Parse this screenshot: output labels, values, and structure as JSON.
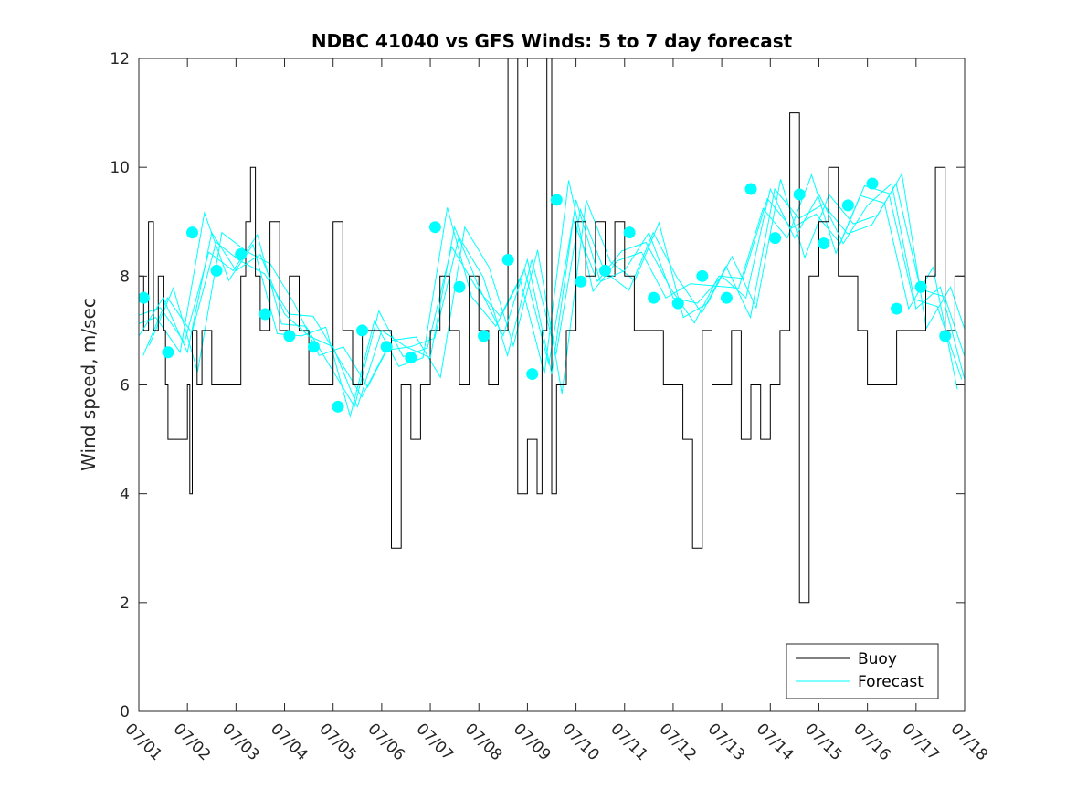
{
  "chart_data": {
    "type": "line",
    "title": "NDBC 41040 vs GFS Winds: 5 to 7 day forecast",
    "xlabel": "",
    "ylabel": "Wind speed, m/sec",
    "ylim": [
      0,
      12
    ],
    "xlim": [
      0,
      17
    ],
    "yticks": [
      0,
      2,
      4,
      6,
      8,
      10,
      12
    ],
    "xtick_labels": [
      "07/01",
      "07/02",
      "07/03",
      "07/04",
      "07/05",
      "07/06",
      "07/07",
      "07/08",
      "07/09",
      "07/10",
      "07/11",
      "07/12",
      "07/13",
      "07/14",
      "07/15",
      "07/16",
      "07/17",
      "07/18"
    ],
    "legend": {
      "placement": "bottom-right",
      "entries": [
        "Buoy",
        "Forecast"
      ]
    },
    "colors": {
      "buoy": "#000000",
      "forecast": "#00ffff"
    },
    "series": [
      {
        "name": "Buoy",
        "x": [
          0,
          0.1,
          0.2,
          0.3,
          0.4,
          0.5,
          0.55,
          0.6,
          0.75,
          0.9,
          1.0,
          1.05,
          1.1,
          1.2,
          1.3,
          1.5,
          1.7,
          1.9,
          2.0,
          2.1,
          2.2,
          2.3,
          2.4,
          2.5,
          2.7,
          2.9,
          3.1,
          3.3,
          3.5,
          3.7,
          3.9,
          4.0,
          4.2,
          4.4,
          4.6,
          4.8,
          5.0,
          5.2,
          5.4,
          5.6,
          5.8,
          6.0,
          6.2,
          6.4,
          6.6,
          6.8,
          7.0,
          7.2,
          7.4,
          7.6,
          7.8,
          8.0,
          8.2,
          8.3,
          8.4,
          8.5,
          8.6,
          8.8,
          9.0,
          9.2,
          9.4,
          9.6,
          9.8,
          10.0,
          10.2,
          10.4,
          10.6,
          10.8,
          11.0,
          11.2,
          11.4,
          11.6,
          11.8,
          12.0,
          12.2,
          12.4,
          12.6,
          12.8,
          13.0,
          13.2,
          13.4,
          13.6,
          13.8,
          14.0,
          14.2,
          14.4,
          14.6,
          14.8,
          15.0,
          15.2,
          15.4,
          15.6,
          15.8,
          16.0,
          16.2,
          16.4,
          16.6,
          16.8,
          17.0
        ],
        "y": [
          8,
          7,
          9,
          7,
          8,
          7,
          6,
          5,
          5,
          5,
          6,
          4,
          7,
          6,
          7,
          6,
          6,
          6,
          6,
          8,
          9,
          10,
          8,
          7,
          9,
          7,
          8,
          7,
          6,
          6,
          6,
          9,
          7,
          6,
          7,
          7,
          7,
          3,
          6,
          5,
          6,
          7,
          8,
          7,
          6,
          8,
          7,
          6,
          7,
          12,
          4,
          5,
          4,
          7,
          12,
          4,
          6,
          7,
          9,
          8,
          9,
          8,
          9,
          8,
          7,
          7,
          7,
          6,
          6,
          5,
          3,
          7,
          6,
          6,
          7,
          5,
          6,
          5,
          6,
          7,
          11,
          2,
          8,
          9,
          10,
          8,
          8,
          7,
          6,
          6,
          6,
          7,
          7,
          7,
          8,
          10,
          7,
          8,
          7
        ]
      },
      {
        "name": "Forecast",
        "x": [
          0,
          0.5,
          1.0,
          1.5,
          2.0,
          2.5,
          3.0,
          3.5,
          4.0,
          4.5,
          5.0,
          5.5,
          6.0,
          6.5,
          7.0,
          7.5,
          8.0,
          8.5,
          9.0,
          9.5,
          10.0,
          10.5,
          11.0,
          11.5,
          12.0,
          12.5,
          13.0,
          13.5,
          14.0,
          14.5,
          15.0,
          15.5,
          16.0,
          16.5,
          17.0
        ],
        "y": [
          6.9,
          7.6,
          6.6,
          8.8,
          8.1,
          8.4,
          7.3,
          6.9,
          6.7,
          5.6,
          7.0,
          6.7,
          6.5,
          8.9,
          7.8,
          6.9,
          8.3,
          6.2,
          9.4,
          7.9,
          8.1,
          8.8,
          7.6,
          7.5,
          8.0,
          7.6,
          9.6,
          8.7,
          9.5,
          8.6,
          9.3,
          9.7,
          7.4,
          7.8,
          6.1
        ]
      }
    ],
    "markers": {
      "series": "Forecast",
      "x": [
        0.1,
        0.6,
        1.1,
        1.6,
        2.1,
        2.6,
        3.1,
        3.6,
        4.1,
        4.6,
        5.1,
        5.6,
        6.1,
        6.6,
        7.1,
        7.6,
        8.1,
        8.6,
        9.1,
        9.6,
        10.1,
        10.6,
        11.1,
        11.6,
        12.1,
        12.6,
        13.1,
        13.6,
        14.1,
        14.6,
        15.1,
        15.6,
        16.1,
        16.6
      ],
      "y": [
        7.6,
        6.6,
        8.8,
        8.1,
        8.4,
        7.3,
        6.9,
        6.7,
        5.6,
        7.0,
        6.7,
        6.5,
        8.9,
        7.8,
        6.9,
        8.3,
        6.2,
        9.4,
        7.9,
        8.1,
        8.8,
        7.6,
        7.5,
        8.0,
        7.6,
        9.6,
        8.7,
        9.5,
        8.6,
        9.3,
        9.7,
        7.4,
        7.8,
        6.9
      ]
    },
    "grid": false
  }
}
